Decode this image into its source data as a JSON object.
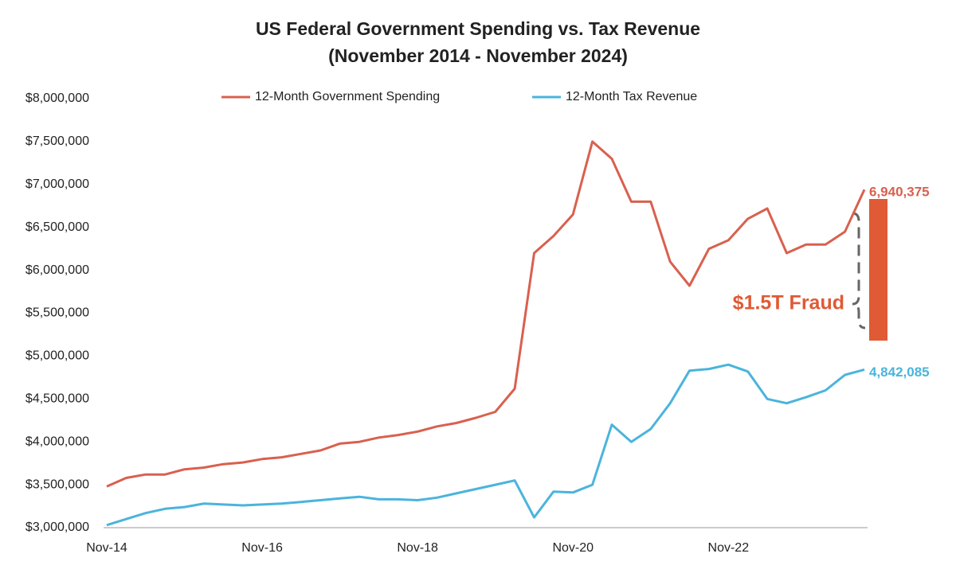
{
  "chart_data": {
    "type": "line",
    "title": "US Federal Government Spending vs. Tax Revenue",
    "subtitle": "(November 2014 - November 2024)",
    "annotation": "$1.5T Fraud",
    "categories": [
      "Nov-14",
      null,
      null,
      null,
      null,
      null,
      null,
      null,
      "Nov-16",
      null,
      null,
      null,
      null,
      null,
      null,
      null,
      "Nov-18",
      null,
      null,
      null,
      null,
      null,
      null,
      null,
      "Nov-20",
      null,
      null,
      null,
      null,
      null,
      null,
      null,
      "Nov-22",
      null,
      null,
      null,
      null,
      null,
      null,
      null
    ],
    "series": [
      {
        "name": "12-Month Government Spending",
        "color": "#d9604e",
        "values": [
          3480000,
          3580000,
          3620000,
          3620000,
          3680000,
          3700000,
          3740000,
          3760000,
          3800000,
          3820000,
          3860000,
          3900000,
          3980000,
          4000000,
          4050000,
          4080000,
          4120000,
          4180000,
          4220000,
          4280000,
          4350000,
          4620000,
          6200000,
          6400000,
          6650000,
          7500000,
          7300000,
          6800000,
          6800000,
          6100000,
          5820000,
          6250000,
          6350000,
          6600000,
          6720000,
          6200000,
          6300000,
          6300000,
          6450000,
          6940375
        ],
        "value_labels": [
          null,
          null,
          null,
          null,
          null,
          null,
          null,
          null,
          null,
          null,
          null,
          null,
          null,
          null,
          null,
          null,
          null,
          null,
          null,
          null,
          null,
          null,
          null,
          null,
          null,
          null,
          null,
          null,
          null,
          null,
          null,
          null,
          null,
          null,
          null,
          null,
          null,
          null,
          null,
          "6,940,375"
        ]
      },
      {
        "name": "12-Month Tax Revenue",
        "color": "#4ab4dc",
        "values": [
          3030000,
          3100000,
          3170000,
          3220000,
          3240000,
          3280000,
          3270000,
          3260000,
          3270000,
          3280000,
          3300000,
          3320000,
          3340000,
          3360000,
          3330000,
          3330000,
          3320000,
          3350000,
          3400000,
          3450000,
          3500000,
          3550000,
          3120000,
          3420000,
          3410000,
          3500000,
          4200000,
          4000000,
          4150000,
          4450000,
          4830000,
          4850000,
          4900000,
          4820000,
          4500000,
          4450000,
          4520000,
          4600000,
          4780000,
          4842085
        ],
        "value_labels": [
          null,
          null,
          null,
          null,
          null,
          null,
          null,
          null,
          null,
          null,
          null,
          null,
          null,
          null,
          null,
          null,
          null,
          null,
          null,
          null,
          null,
          null,
          null,
          null,
          null,
          null,
          null,
          null,
          null,
          null,
          null,
          null,
          null,
          null,
          null,
          null,
          null,
          null,
          null,
          "4,842,085"
        ]
      }
    ],
    "ylim": [
      3000000,
      8000000
    ],
    "yticks": [
      {
        "value": 3000000,
        "label": "$3,000,000"
      },
      {
        "value": 3500000,
        "label": "$3,500,000"
      },
      {
        "value": 4000000,
        "label": "$4,000,000"
      },
      {
        "value": 4500000,
        "label": "$4,500,000"
      },
      {
        "value": 5000000,
        "label": "$5,000,000"
      },
      {
        "value": 5500000,
        "label": "$5,500,000"
      },
      {
        "value": 6000000,
        "label": "$6,000,000"
      },
      {
        "value": 6500000,
        "label": "$6,500,000"
      },
      {
        "value": 7000000,
        "label": "$7,000,000"
      },
      {
        "value": 7500000,
        "label": "$7,500,000"
      },
      {
        "value": 8000000,
        "label": "$8,000,000"
      }
    ],
    "grid": false,
    "legend": "top"
  }
}
